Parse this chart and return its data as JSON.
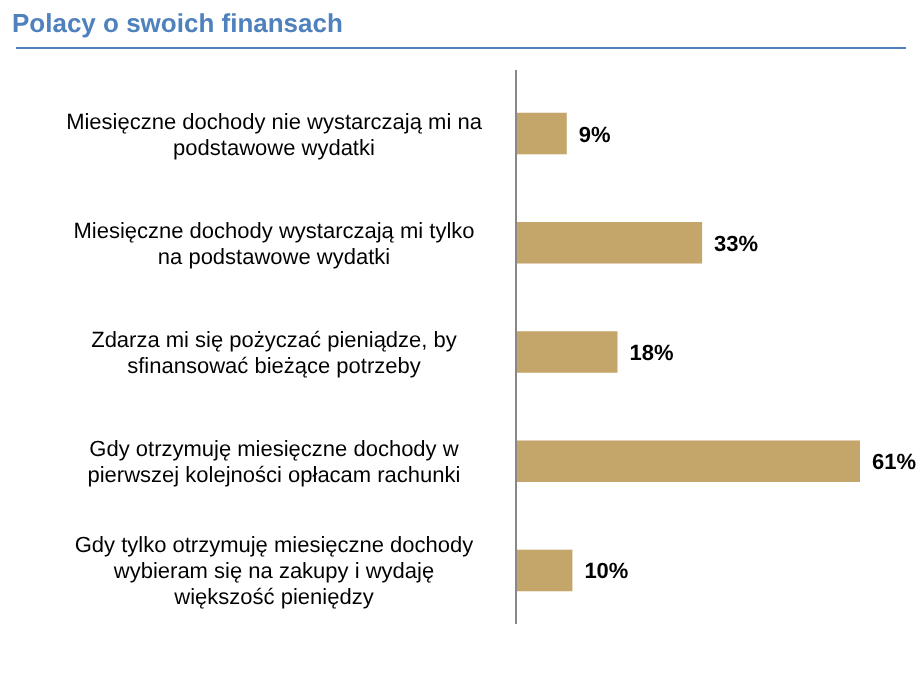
{
  "chart_data": {
    "type": "bar",
    "orientation": "horizontal",
    "title": "Polacy o swoich finansach",
    "categories": [
      "Miesięczne dochody nie wystarczają mi na podstawowe wydatki",
      "Miesięczne dochody wystarczają mi tylko na podstawowe wydatki",
      "Zdarza mi się pożyczać pieniądze, by sfinansować bieżące potrzeby",
      "Gdy otrzymuję miesięczne dochody w pierwszej kolejności opłacam rachunki",
      "Gdy tylko otrzymuję miesięczne dochody wybieram się na zakupy i wydaję większość pieniędzy"
    ],
    "values": [
      9,
      33,
      18,
      61,
      10
    ],
    "value_labels": [
      "9%",
      "33%",
      "18%",
      "61%",
      "10%"
    ],
    "color": "#c4a66a"
  }
}
